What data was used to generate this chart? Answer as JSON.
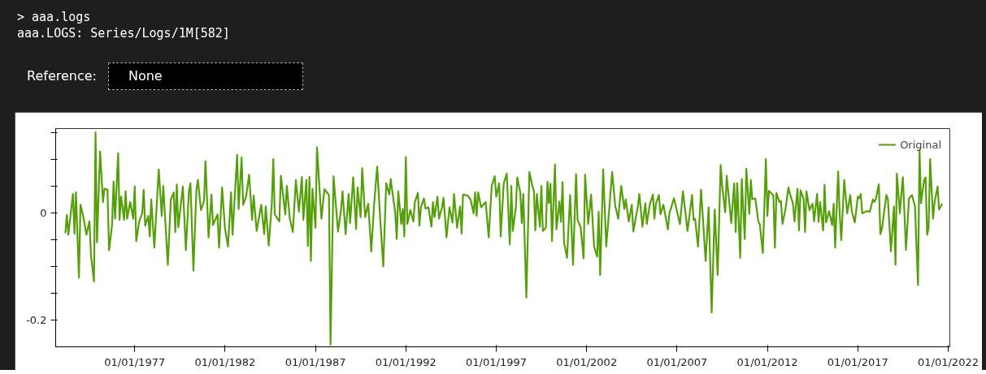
{
  "chart_data": {
    "type": "line",
    "title": "> aaa.logs",
    "subtitle": "aaa.LOGS: Series/Logs/1M[582]",
    "annotations": [
      "Reference:",
      "None"
    ],
    "xlim": [
      "1972-08-18",
      "2022-02-03"
    ],
    "ylim": [
      -0.25,
      0.157
    ],
    "xticks": [
      {
        "value": "1977-01-01",
        "label": "01/01/1977"
      },
      {
        "value": "1982-01-01",
        "label": "01/01/1982"
      },
      {
        "value": "1987-01-01",
        "label": "01/01/1987"
      },
      {
        "value": "1992-01-01",
        "label": "01/01/1992"
      },
      {
        "value": "1997-01-01",
        "label": "01/01/1997"
      },
      {
        "value": "2002-01-01",
        "label": "01/01/2002"
      },
      {
        "value": "2007-01-01",
        "label": "01/01/2007"
      },
      {
        "value": "2012-01-01",
        "label": "01/01/2012"
      },
      {
        "value": "2017-01-01",
        "label": "01/01/2017"
      },
      {
        "value": "2022-01-01",
        "label": "01/01/2022"
      }
    ],
    "yticks": [
      {
        "value": 0.15,
        "label": null
      },
      {
        "value": 0.1,
        "label": null
      },
      {
        "value": 0.05,
        "label": null
      },
      0,
      {
        "value": -0.05,
        "label": null
      },
      {
        "value": -0.1,
        "label": null
      },
      {
        "value": -0.15,
        "label": null
      },
      -0.2
    ],
    "grid": false,
    "legend": "top right",
    "line_style": "solid",
    "series": [
      {
        "name": "Original",
        "color": "#55a00a",
        "x": [
          "1973-03",
          "1973-04",
          "1973-05",
          "1973-08",
          "1973-09",
          "1973-10",
          "1973-12",
          "1974-01",
          "1974-03",
          "1974-05",
          "1974-07",
          "1974-08",
          "1974-10",
          "1974-11",
          "1974-12",
          "1975-02",
          "1975-04",
          "1975-05",
          "1975-07",
          "1975-08",
          "1975-10",
          "1975-11",
          "1975-12",
          "1976-02",
          "1976-03",
          "1976-04",
          "1976-06",
          "1976-07",
          "1976-08",
          "1976-10",
          "1976-12",
          "1977-01",
          "1977-02",
          "1977-04",
          "1977-06",
          "1977-07",
          "1977-08",
          "1977-10",
          "1977-11",
          "1977-12",
          "1978-02",
          "1978-05",
          "1978-07",
          "1978-08",
          "1978-11",
          "1979-01",
          "1979-03",
          "1979-04",
          "1979-05",
          "1979-06",
          "1979-09",
          "1979-11",
          "1980-01",
          "1980-02",
          "1980-04",
          "1980-06",
          "1980-07",
          "1980-09",
          "1980-11",
          "1980-12",
          "1981-02",
          "1981-04",
          "1981-05",
          "1981-08",
          "1981-09",
          "1981-11",
          "1982-01",
          "1982-03",
          "1982-05",
          "1982-06",
          "1982-09",
          "1982-10",
          "1982-12",
          "1983-01",
          "1983-03",
          "1983-05",
          "1983-07",
          "1983-08",
          "1983-10",
          "1984-01",
          "1984-03",
          "1984-04",
          "1984-06",
          "1984-08",
          "1984-09",
          "1984-10",
          "1985-01",
          "1985-02",
          "1985-05",
          "1985-06",
          "1985-08",
          "1985-10",
          "1985-12",
          "1986-02",
          "1986-04",
          "1986-05",
          "1986-07",
          "1986-08",
          "1986-09",
          "1986-10",
          "1986-11",
          "1987-01",
          "1987-02",
          "1987-04",
          "1987-05",
          "1987-07",
          "1987-10",
          "1987-11",
          "1988-01",
          "1988-04",
          "1988-06",
          "1988-07",
          "1988-09",
          "1988-11",
          "1988-12",
          "1989-02",
          "1989-04",
          "1989-05",
          "1989-07",
          "1989-08",
          "1989-10",
          "1989-12",
          "1990-01",
          "1990-02",
          "1990-04",
          "1990-06",
          "1990-08",
          "1990-10",
          "1990-12",
          "1991-02",
          "1991-03",
          "1991-06",
          "1991-07",
          "1991-08",
          "1991-10",
          "1991-11",
          "1991-12",
          "1992-01",
          "1992-02",
          "1992-04",
          "1992-06",
          "1992-07",
          "1992-09",
          "1992-10",
          "1992-11",
          "1993-01",
          "1993-02",
          "1993-04",
          "1993-06",
          "1993-07",
          "1993-08",
          "1993-10",
          "1993-11",
          "1994-01",
          "1994-02",
          "1994-04",
          "1994-06",
          "1994-08",
          "1994-09",
          "1994-11",
          "1995-01",
          "1995-02",
          "1995-03",
          "1995-06",
          "1995-08",
          "1995-10",
          "1995-11",
          "1995-12",
          "1996-01",
          "1996-03",
          "1996-06",
          "1996-08",
          "1996-10",
          "1996-12",
          "1997-01",
          "1997-03",
          "1997-04",
          "1997-06",
          "1997-08",
          "1997-10",
          "1997-11",
          "1997-12",
          "1998-02",
          "1998-03",
          "1998-05",
          "1998-06",
          "1998-07",
          "1998-09",
          "1998-11",
          "1999-01",
          "1999-02",
          "1999-03",
          "1999-04",
          "1999-06",
          "1999-07",
          "1999-08",
          "1999-10",
          "1999-11",
          "1999-12",
          "2000-01",
          "2000-02",
          "2000-04",
          "2000-05",
          "2000-07",
          "2000-08",
          "2000-09",
          "2000-10",
          "2000-12",
          "2001-02",
          "2001-04",
          "2001-06",
          "2001-07",
          "2001-09",
          "2001-11",
          "2001-12",
          "2002-02",
          "2002-04",
          "2002-06",
          "2002-08",
          "2002-09",
          "2002-10",
          "2002-12",
          "2003-02",
          "2003-06",
          "2003-08",
          "2003-10",
          "2003-12",
          "2004-02",
          "2004-03",
          "2004-05",
          "2004-07",
          "2004-08",
          "2004-11",
          "2004-12",
          "2005-02",
          "2005-04",
          "2005-05",
          "2005-07",
          "2005-09",
          "2005-10",
          "2005-11",
          "2006-01",
          "2006-02",
          "2006-04",
          "2006-07",
          "2006-08",
          "2006-11",
          "2007-03",
          "2007-05",
          "2007-08",
          "2007-11",
          "2007-12",
          "2008-01",
          "2008-03",
          "2008-05",
          "2008-08",
          "2008-10",
          "2008-12",
          "2009-02",
          "2009-04",
          "2009-06",
          "2009-07",
          "2009-09",
          "2009-10",
          "2010-01",
          "2010-03",
          "2010-04",
          "2010-05",
          "2010-07",
          "2010-08",
          "2010-10",
          "2010-11",
          "2011-01",
          "2011-02",
          "2011-03",
          "2011-05",
          "2011-07",
          "2011-08",
          "2011-10",
          "2011-12",
          "2012-01",
          "2012-02",
          "2012-05",
          "2012-06",
          "2012-07",
          "2012-09",
          "2012-10",
          "2012-11",
          "2013-01",
          "2013-03",
          "2013-04",
          "2013-06",
          "2013-07",
          "2013-09",
          "2013-10",
          "2013-11",
          "2014-01",
          "2014-02",
          "2014-03",
          "2014-05",
          "2014-07",
          "2014-08",
          "2014-10",
          "2014-11",
          "2014-12",
          "2015-02",
          "2015-03",
          "2015-04",
          "2015-06",
          "2015-08",
          "2015-09",
          "2015-10",
          "2015-12",
          "2016-01",
          "2016-02",
          "2016-04",
          "2016-06",
          "2016-08",
          "2016-09",
          "2016-11",
          "2017-01",
          "2017-02",
          "2017-03",
          "2017-04",
          "2017-07",
          "2017-09",
          "2017-11",
          "2017-12",
          "2018-01",
          "2018-03",
          "2018-04",
          "2018-05",
          "2018-08",
          "2018-09",
          "2018-11",
          "2019-01",
          "2019-02",
          "2019-03",
          "2019-05",
          "2019-06",
          "2019-07",
          "2019-09",
          "2019-11",
          "2020-01",
          "2020-03",
          "2020-05",
          "2020-06",
          "2020-07",
          "2020-09",
          "2020-10",
          "2020-11",
          "2020-12",
          "2021-01",
          "2021-03",
          "2021-04",
          "2021-06",
          "2021-07",
          "2021-09"
        ],
        "values": [
          -0.038,
          -0.004,
          -0.041,
          0.035,
          -0.039,
          0.038,
          -0.121,
          0.015,
          -0.008,
          -0.041,
          -0.016,
          -0.079,
          -0.128,
          0.15,
          -0.055,
          0.114,
          0.02,
          0.045,
          0.043,
          -0.07,
          -0.023,
          0.058,
          -0.011,
          0.111,
          -0.013,
          0.03,
          -0.013,
          0.04,
          -0.011,
          0.02,
          -0.011,
          0.049,
          -0.053,
          -0.016,
          -0.001,
          0.043,
          -0.024,
          -0.006,
          -0.044,
          0.025,
          -0.065,
          0.081,
          -0.006,
          0.05,
          -0.097,
          0.025,
          0.038,
          -0.036,
          0.053,
          -0.027,
          0.049,
          -0.07,
          0.04,
          0.055,
          -0.108,
          0.043,
          0.061,
          0.005,
          0.022,
          0.096,
          -0.046,
          0.034,
          -0.023,
          -0.003,
          -0.065,
          0.047,
          -0.031,
          -0.063,
          0.038,
          -0.041,
          0.108,
          0.007,
          0.103,
          0.015,
          0.03,
          0.071,
          -0.013,
          0.032,
          -0.034,
          0.015,
          -0.04,
          0.012,
          -0.061,
          0.015,
          0.1,
          -0.003,
          -0.016,
          0.069,
          -0.003,
          0.05,
          -0.011,
          -0.036,
          0.061,
          0.002,
          0.067,
          -0.013,
          0.061,
          -0.062,
          0.067,
          -0.09,
          0.045,
          -0.028,
          0.122,
          0.033,
          -0.011,
          0.044,
          0.033,
          -0.246,
          0.068,
          -0.035,
          0.006,
          0.04,
          -0.04,
          0.035,
          -0.019,
          0.066,
          -0.03,
          0.047,
          -0.008,
          0.083,
          -0.008,
          0.017,
          -0.026,
          -0.072,
          0.017,
          0.086,
          -0.011,
          -0.1,
          0.055,
          0.034,
          0.063,
          -0.001,
          -0.049,
          0.04,
          -0.021,
          0.007,
          -0.044,
          0.104,
          -0.021,
          0.005,
          -0.016,
          0.02,
          0.037,
          -0.024,
          0.01,
          0.027,
          0.008,
          0.01,
          -0.026,
          0.02,
          -0.008,
          0.03,
          -0.011,
          0.01,
          0.028,
          -0.046,
          0.01,
          -0.018,
          0.035,
          -0.028,
          0.012,
          -0.039,
          0.034,
          0.032,
          0.025,
          -0.001,
          0.038,
          -0.006,
          0.038,
          0.01,
          0.02,
          -0.046,
          0.05,
          0.068,
          0.03,
          0.055,
          -0.044,
          0.055,
          0.073,
          -0.059,
          0.05,
          -0.034,
          0.01,
          0.066,
          0.038,
          -0.019,
          0.035,
          -0.158,
          0.076,
          0.05,
          0.04,
          -0.033,
          0.035,
          -0.026,
          0.05,
          -0.034,
          -0.028,
          0.058,
          0.018,
          0.054,
          -0.053,
          0.09,
          -0.031,
          0.021,
          -0.017,
          0.057,
          -0.055,
          -0.084,
          0.033,
          -0.097,
          0.072,
          -0.013,
          -0.027,
          -0.085,
          0.071,
          -0.021,
          0.034,
          -0.063,
          -0.082,
          0.002,
          -0.116,
          0.081,
          -0.063,
          0.076,
          0.013,
          -0.011,
          0.05,
          0.007,
          0.025,
          -0.016,
          0.015,
          -0.035,
          0.012,
          0.035,
          -0.026,
          0.018,
          -0.021,
          0.016,
          0.034,
          -0.011,
          0.017,
          0.033,
          -0.003,
          0.015,
          -0.031,
          -0.001,
          0.027,
          -0.021,
          0.04,
          -0.034,
          0.033,
          -0.013,
          -0.011,
          -0.063,
          0.043,
          -0.09,
          0.01,
          -0.186,
          0.006,
          -0.116,
          0.089,
          0.05,
          0.001,
          0.069,
          -0.019,
          0.055,
          -0.036,
          0.055,
          -0.084,
          0.063,
          -0.049,
          0.082,
          -0.002,
          0.061,
          0.025,
          0.027,
          -0.016,
          -0.022,
          -0.075,
          0.1,
          -0.006,
          0.041,
          0.032,
          -0.065,
          0.037,
          0.02,
          0.022,
          -0.021,
          0.007,
          0.047,
          0.035,
          0.017,
          -0.016,
          0.045,
          -0.033,
          0.042,
          0.026,
          -0.036,
          0.04,
          0.005,
          0.017,
          -0.016,
          0.035,
          -0.017,
          0.02,
          -0.033,
          0.052,
          -0.018,
          0.003,
          -0.023,
          0.017,
          -0.065,
          0.077,
          -0.003,
          -0.051,
          0.061,
          -0.001,
          0.033,
          0.003,
          -0.018,
          0.03,
          0.027,
          0.035,
          -0.001,
          0.003,
          0.002,
          0.025,
          0.02,
          0.026,
          0.053,
          -0.04,
          -0.031,
          0.033,
          0.025,
          -0.072,
          0.012,
          -0.097,
          0.073,
          -0.001,
          0.037,
          0.066,
          -0.069,
          0.027,
          0.033,
          0.012,
          -0.135,
          0.117,
          0.018,
          0.061,
          0.066,
          -0.041,
          -0.028,
          0.1,
          -0.011,
          0.02,
          0.049,
          0.006,
          0.017
        ]
      }
    ]
  }
}
